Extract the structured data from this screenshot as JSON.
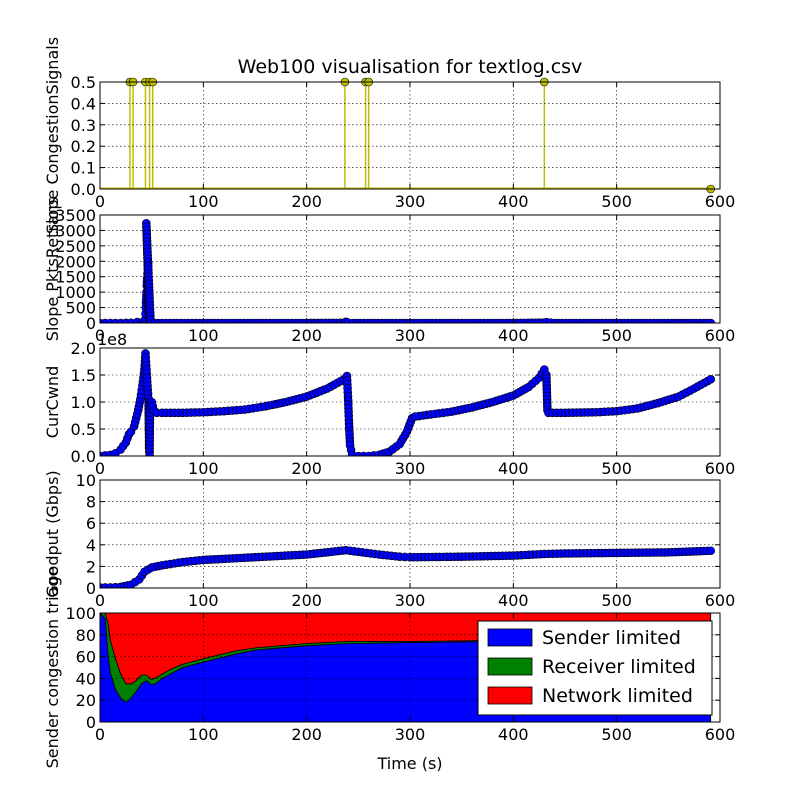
{
  "chart_data": {
    "title": "Web100 visualisation for textlog.csv",
    "xlabel": "Time (s)",
    "x_ticks": [
      "0",
      "100",
      "200",
      "300",
      "400",
      "500",
      "600"
    ],
    "xlim": [
      0,
      600
    ],
    "grid": true,
    "panels": [
      {
        "id": "congestion-signals",
        "type": "stem",
        "ylabel": "Slope CongestionSignals",
        "ylim": [
          0,
          0.5
        ],
        "y_ticks": [
          "0.0",
          "0.1",
          "0.2",
          "0.3",
          "0.4",
          "0.5"
        ],
        "color": "#bfbf00",
        "marker_color": "#bfbf00",
        "baseline_color": "#bfbf00",
        "spikes": [
          {
            "x": 29,
            "y": 0.5
          },
          {
            "x": 32,
            "y": 0.5
          },
          {
            "x": 44,
            "y": 0.5
          },
          {
            "x": 48,
            "y": 0.5
          },
          {
            "x": 51,
            "y": 0.5
          },
          {
            "x": 237,
            "y": 0.5
          },
          {
            "x": 257,
            "y": 0.5
          },
          {
            "x": 260,
            "y": 0.5
          },
          {
            "x": 430,
            "y": 0.5
          }
        ],
        "baseline_x": [
          0,
          591
        ],
        "end_point": {
          "x": 591,
          "y": 0
        }
      },
      {
        "id": "pkts-retrans",
        "type": "line-markers",
        "ylabel": "Slope PktsRetrans",
        "ylim": [
          0,
          3500
        ],
        "y_ticks": [
          "0",
          "500",
          "1000",
          "1500",
          "2000",
          "2500",
          "3000",
          "3500"
        ],
        "color": "#0000ff",
        "points": [
          [
            0,
            0
          ],
          [
            10,
            0
          ],
          [
            20,
            0
          ],
          [
            30,
            5
          ],
          [
            36,
            30
          ],
          [
            40,
            10
          ],
          [
            42,
            0
          ],
          [
            43.5,
            100
          ],
          [
            44,
            300
          ],
          [
            44.3,
            500
          ],
          [
            44.6,
            650
          ],
          [
            45,
            1000
          ],
          [
            45.3,
            1200
          ],
          [
            45.6,
            1450
          ],
          [
            46,
            1600
          ],
          [
            46.3,
            1750
          ],
          [
            46.6,
            1950
          ],
          [
            47,
            1000
          ],
          [
            47.5,
            300
          ],
          [
            48,
            50
          ],
          [
            44.8,
            3230
          ],
          [
            49,
            0
          ],
          [
            60,
            0
          ],
          [
            100,
            0
          ],
          [
            150,
            0
          ],
          [
            200,
            0
          ],
          [
            236,
            5
          ],
          [
            238,
            40
          ],
          [
            240,
            15
          ],
          [
            245,
            0
          ],
          [
            300,
            0
          ],
          [
            350,
            0
          ],
          [
            400,
            0
          ],
          [
            428,
            10
          ],
          [
            432,
            25
          ],
          [
            440,
            0
          ],
          [
            500,
            0
          ],
          [
            550,
            0
          ],
          [
            591,
            0
          ]
        ]
      },
      {
        "id": "curcwnd",
        "type": "line-markers",
        "ylabel": "CurCwnd",
        "multiplier": "1e8",
        "ylim": [
          0,
          2.0
        ],
        "y_ticks": [
          "0.0",
          "0.5",
          "1.0",
          "1.5",
          "2.0"
        ],
        "color": "#0000ff",
        "segments": [
          [
            [
              0,
              0
            ],
            [
              5,
              0.01
            ],
            [
              10,
              0.02
            ],
            [
              15,
              0.05
            ],
            [
              20,
              0.12
            ],
            [
              25,
              0.25
            ],
            [
              28,
              0.4
            ],
            [
              30,
              0.45
            ],
            [
              33,
              0.55
            ],
            [
              35,
              0.7
            ],
            [
              37,
              0.85
            ],
            [
              39,
              1.05
            ],
            [
              41,
              1.3
            ],
            [
              43,
              1.6
            ],
            [
              44,
              1.9
            ],
            [
              45,
              1.6
            ],
            [
              46,
              1.3
            ],
            [
              47,
              1.0
            ],
            [
              47.5,
              0.15
            ],
            [
              48,
              0.0
            ],
            [
              48.5,
              1.0
            ],
            [
              50,
              1.0
            ],
            [
              52,
              0.85
            ],
            [
              55,
              0.8
            ],
            [
              60,
              0.8
            ],
            [
              80,
              0.8
            ],
            [
              100,
              0.81
            ],
            [
              120,
              0.83
            ],
            [
              140,
              0.86
            ],
            [
              160,
              0.92
            ],
            [
              180,
              1.0
            ],
            [
              200,
              1.1
            ],
            [
              220,
              1.25
            ],
            [
              236,
              1.42
            ],
            [
              239,
              1.48
            ],
            [
              240,
              1.1
            ],
            [
              241,
              0.6
            ],
            [
              242,
              0.2
            ],
            [
              244,
              0.02
            ],
            [
              250,
              0.0
            ],
            [
              260,
              0.0
            ],
            [
              270,
              0.02
            ],
            [
              280,
              0.08
            ],
            [
              290,
              0.22
            ],
            [
              297,
              0.45
            ],
            [
              302,
              0.7
            ],
            [
              305,
              0.73
            ],
            [
              320,
              0.77
            ],
            [
              340,
              0.82
            ],
            [
              360,
              0.9
            ],
            [
              380,
              1.0
            ],
            [
              400,
              1.12
            ],
            [
              415,
              1.28
            ],
            [
              425,
              1.45
            ],
            [
              430,
              1.6
            ],
            [
              432,
              1.5
            ],
            [
              433,
              0.85
            ],
            [
              434,
              0.8
            ],
            [
              450,
              0.8
            ],
            [
              480,
              0.81
            ],
            [
              500,
              0.83
            ],
            [
              520,
              0.88
            ],
            [
              540,
              0.98
            ],
            [
              560,
              1.1
            ],
            [
              575,
              1.25
            ],
            [
              591,
              1.42
            ]
          ]
        ]
      },
      {
        "id": "goodput",
        "type": "line-markers",
        "ylabel": "Goodput (Gbps)",
        "ylim": [
          0,
          10
        ],
        "y_ticks": [
          "0",
          "2",
          "4",
          "6",
          "8",
          "10"
        ],
        "color": "#0000ff",
        "points": [
          [
            0,
            0.05
          ],
          [
            10,
            0.05
          ],
          [
            20,
            0.1
          ],
          [
            30,
            0.3
          ],
          [
            38,
            0.8
          ],
          [
            43,
            1.5
          ],
          [
            50,
            1.9
          ],
          [
            60,
            2.1
          ],
          [
            80,
            2.4
          ],
          [
            100,
            2.6
          ],
          [
            150,
            2.85
          ],
          [
            200,
            3.1
          ],
          [
            238,
            3.5
          ],
          [
            250,
            3.35
          ],
          [
            270,
            3.1
          ],
          [
            290,
            2.9
          ],
          [
            300,
            2.85
          ],
          [
            350,
            2.9
          ],
          [
            400,
            3.0
          ],
          [
            430,
            3.15
          ],
          [
            450,
            3.2
          ],
          [
            500,
            3.25
          ],
          [
            550,
            3.3
          ],
          [
            591,
            3.45
          ]
        ]
      },
      {
        "id": "triage",
        "type": "stacked-area",
        "ylabel": "Sender congestion triage",
        "ylim": [
          0,
          100
        ],
        "y_ticks": [
          "0",
          "20",
          "40",
          "60",
          "80",
          "100"
        ],
        "x": [
          0,
          5,
          8,
          10,
          15,
          20,
          25,
          30,
          35,
          40,
          45,
          50,
          55,
          60,
          70,
          80,
          100,
          130,
          150,
          200,
          240,
          250,
          300,
          400,
          500,
          591
        ],
        "series": [
          {
            "name": "Sender limited",
            "color": "#0000ff",
            "values": [
              100,
              95,
              60,
              45,
              30,
              22,
              18,
              22,
              28,
              35,
              38,
              34,
              36,
              40,
              45,
              50,
              55,
              62,
              66,
              70,
              72,
              72,
              73,
              74,
              75,
              76
            ]
          },
          {
            "name": "Receiver limited",
            "color": "#008000",
            "values": [
              0,
              5,
              30,
              30,
              28,
              22,
              17,
              13,
              10,
              8,
              5,
              5,
              5,
              4,
              4,
              3,
              3,
              3,
              2,
              2,
              2,
              2,
              1,
              1,
              1,
              1
            ]
          },
          {
            "name": "Network limited",
            "color": "#ff0000",
            "values": [
              0,
              0,
              10,
              25,
              42,
              56,
              65,
              65,
              62,
              57,
              57,
              61,
              59,
              56,
              51,
              47,
              42,
              35,
              32,
              28,
              26,
              26,
              26,
              25,
              24,
              23
            ]
          }
        ],
        "legend_position": "top-right"
      }
    ]
  }
}
